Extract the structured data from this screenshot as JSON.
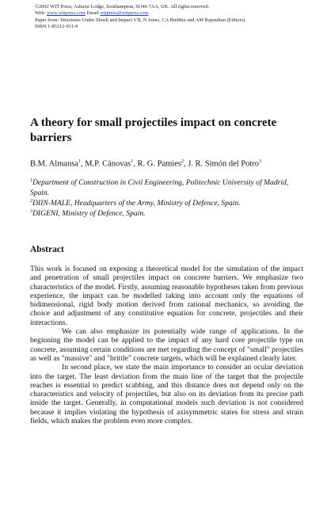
{
  "header": {
    "line1": "©2002 WIT Press, Ashurst Lodge, Southampton, SO40 7AA, UK. All rights reserved.",
    "web_label": "Web: ",
    "web_link": "www.witpress.com",
    "email_label": " Email ",
    "email_link": "witpress@witpress.com",
    "line3": "Paper from: Structures Under Shock and Impact VII, N Jones, CA Brebbia and AM Rajendran (Editors).",
    "line4": "ISBN 1-85312-911-9"
  },
  "title": "A theory for small projectiles impact on concrete barriers",
  "authors": {
    "a1": "B.M. Almansa",
    "s1": "1",
    "a2": ", M.P. Cánovas",
    "s2": "1",
    "a3": ", R. G. Pamies",
    "s3": "2",
    "a4": ", J. R. Simón del Potro",
    "s4": "3"
  },
  "affiliations": [
    {
      "num": "1",
      "text": "Department of Construction in Civil Engineering, Politechnic University of Madrid, Spain."
    },
    {
      "num": "2",
      "text": "DIIN-MALE, Headquarters of the Army, Ministry of Defence, Spain."
    },
    {
      "num": "3",
      "text": "DIGENI, Ministry of Defence, Spain."
    }
  ],
  "abstract_heading": "Abstract",
  "abstract_paragraphs": [
    "This work is focused on exposing a theoretical model for the simulation of the impact and penetration of small projectiles impact on concrete barriers. We emphasize two characteristics of the model. Firstly, assuming reasonable hypotheses taken from previous experience, the impact can be modelled taking into account only the equations of bidimensional, rigid body motion derived from rational mechanics, so avoiding the choice and adjustment of any constitutive equation for concrete, projectiles and their interactions.",
    "We can also emphasize its potentially wide range of applications. In the beginning the model can be applied to the impact of any hard core projectile type on concrete, assuming certain conditions are met regarding the concept of \"small\" projectiles as well as \"massive\" and \"brittle\" concrete targets, which will be explained clearly later.",
    "In second place, we state the main importance to consider an ocular deviation into the target. The least deviation from the main line of the target that the projectile reaches is essential to predict scabbing, and this distance does not depend only on the characteristics and velocity of projectiles, but also on its deviation from its precise path inside the target. Generally, in computational models such deviation is not considered because it implies violating the hypothesis of axisymmetric states for stress and strain fields, which makes the problem even more complex."
  ]
}
